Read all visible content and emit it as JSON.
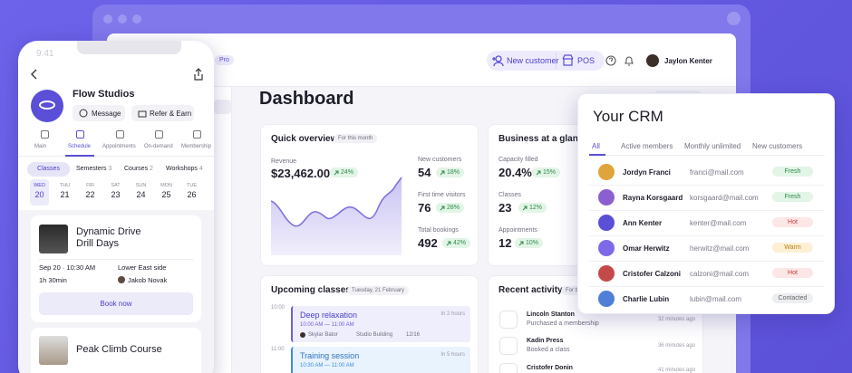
{
  "phone": {
    "time": "9:41",
    "studio": "Flow Studios",
    "actions": [
      "Message",
      "Refer & Earn"
    ],
    "tabs": [
      "Main",
      "Schedule",
      "Appointments",
      "On-demand",
      "Membership"
    ],
    "filters": [
      {
        "label": "Classes"
      },
      {
        "label": "Semesters",
        "count": "3"
      },
      {
        "label": "Courses",
        "count": "2"
      },
      {
        "label": "Workshops",
        "count": "4"
      }
    ],
    "days": [
      {
        "weekday": "WED",
        "date": "20"
      },
      {
        "weekday": "THU",
        "date": "21"
      },
      {
        "weekday": "FRI",
        "date": "22"
      },
      {
        "weekday": "SAT",
        "date": "23"
      },
      {
        "weekday": "SUN",
        "date": "24"
      },
      {
        "weekday": "MON",
        "date": "25"
      },
      {
        "weekday": "TUE",
        "date": "26"
      }
    ],
    "event": {
      "title": "Dynamic Drive Drill Days",
      "when": "Sep 20 · 10:30 AM",
      "location": "Lower East side",
      "duration": "1h 30min",
      "instructor": "Jakob Novak",
      "cta": "Book now"
    },
    "next_event": "Peak Climb Course"
  },
  "header": {
    "badge": "Pro",
    "new_customer": "New customer",
    "pos": "POS",
    "user": "Jaylon Kenter"
  },
  "dashboard": {
    "title": "Dashboard",
    "quick_overview": {
      "title": "Quick overview",
      "period": "For this month",
      "revenue": {
        "label": "Revenue",
        "value": "$23,462.00",
        "change": "24%"
      },
      "stats": [
        {
          "label": "New customers",
          "value": "54",
          "change": "18%"
        },
        {
          "label": "First time visitors",
          "value": "76",
          "change": "28%"
        },
        {
          "label": "Total bookings",
          "value": "492",
          "change": "42%"
        }
      ]
    },
    "glance": {
      "title": "Business at a glance",
      "stats": [
        {
          "label": "Capacity filled",
          "value": "20.4%",
          "change": "15%"
        },
        {
          "label": "Classes",
          "value": "23",
          "change": "12%"
        },
        {
          "label": "Appointments",
          "value": "12",
          "change": "10%"
        }
      ]
    },
    "upcoming": {
      "title": "Upcoming classes",
      "date": "Tuesday, 21 February",
      "hours": [
        "10:00",
        "11:00"
      ],
      "classes": [
        {
          "name": "Deep relaxation",
          "eta": "In 2 hours",
          "time": "10:00 AM — 11:00 AM",
          "instructor": "Skylar Bator",
          "place": "Studio Building",
          "capacity": "12/16"
        },
        {
          "name": "Training session",
          "eta": "In 5 hours",
          "time": "10:30 AM — 11:00 AM"
        }
      ]
    },
    "activity": {
      "title": "Recent activity",
      "period": "For this month",
      "items": [
        {
          "name": "Lincoln Stanton",
          "action": "Purchased a membership",
          "time": "32 minutes ago"
        },
        {
          "name": "Kadin Press",
          "action": "Booked a class",
          "time": "36 minutes ago"
        },
        {
          "name": "Cristofer Donin",
          "time": "41 minutes ago"
        }
      ]
    }
  },
  "crm": {
    "title": "Your CRM",
    "tabs": [
      "All",
      "Active members",
      "Monthly unlimited",
      "New customers"
    ],
    "rows": [
      {
        "name": "Jordyn Franci",
        "email": "franci@mail.com",
        "status": "Fresh"
      },
      {
        "name": "Rayna Korsgaard",
        "email": "korsgaard@mail.com",
        "status": "Fresh"
      },
      {
        "name": "Ann Kenter",
        "email": "kenter@mail.com",
        "status": "Hot"
      },
      {
        "name": "Omar Herwitz",
        "email": "herwitz@mail.com",
        "status": "Warm"
      },
      {
        "name": "Cristofer Calzoni",
        "email": "calzoni@mail.com",
        "status": "Hot"
      },
      {
        "name": "Charlie Lubin",
        "email": "lubin@mail.com",
        "status": "Contacted"
      }
    ]
  }
}
